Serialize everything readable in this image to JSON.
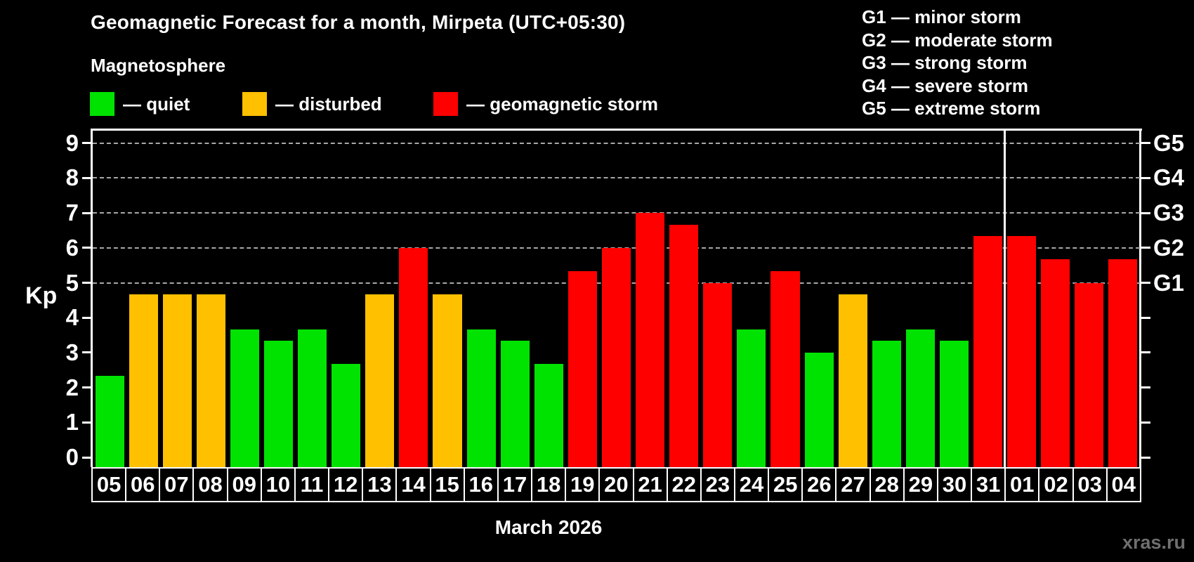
{
  "header": {
    "title": "Geomagnetic Forecast for a month, Mirpeta (UTC+05:30)",
    "subtitle": "Magnetosphere"
  },
  "legend": {
    "items": [
      {
        "status": "quiet",
        "label": "— quiet"
      },
      {
        "status": "disturbed",
        "label": "— disturbed"
      },
      {
        "status": "storm",
        "label": "— geomagnetic storm"
      }
    ]
  },
  "g_legend": {
    "items": [
      "G1 — minor storm",
      "G2 — moderate storm",
      "G3 — strong storm",
      "G4 — severe storm",
      "G5 — extreme storm"
    ]
  },
  "footer": {
    "month_label": "March 2026",
    "watermark": "xras.ru"
  },
  "chart_data": {
    "type": "bar",
    "title": "Geomagnetic Forecast for a month, Mirpeta (UTC+05:30)",
    "ylabel": "Kp",
    "xlabel": "March 2026",
    "ylim": [
      0,
      9.4
    ],
    "y_ticks": [
      0,
      1,
      2,
      3,
      4,
      5,
      6,
      7,
      8,
      9
    ],
    "gridlines_at": [
      5,
      6,
      7,
      8,
      9
    ],
    "grid": "dashed, horizontal only, Kp 5-9",
    "legend_position": "top-left",
    "right_axis_labels": [
      {
        "text": "G1",
        "kp": 5
      },
      {
        "text": "G2",
        "kp": 6
      },
      {
        "text": "G3",
        "kp": 7
      },
      {
        "text": "G4",
        "kp": 8
      },
      {
        "text": "G5",
        "kp": 9
      }
    ],
    "month_separator_after_index": 26,
    "categories": [
      "05",
      "06",
      "07",
      "08",
      "09",
      "10",
      "11",
      "12",
      "13",
      "14",
      "15",
      "16",
      "17",
      "18",
      "19",
      "20",
      "21",
      "22",
      "23",
      "24",
      "25",
      "26",
      "27",
      "28",
      "29",
      "30",
      "31",
      "01",
      "02",
      "03",
      "04"
    ],
    "values": [
      2.33,
      4.67,
      4.67,
      4.67,
      3.67,
      3.33,
      3.67,
      2.67,
      4.67,
      6,
      4.67,
      3.67,
      3.33,
      2.67,
      5.33,
      6,
      7,
      6.67,
      5,
      3.67,
      5.33,
      3,
      4.67,
      3.33,
      3.67,
      3.33,
      6.33,
      6.33,
      5.67,
      5,
      5.67
    ],
    "statuses": [
      "quiet",
      "disturbed",
      "disturbed",
      "disturbed",
      "quiet",
      "quiet",
      "quiet",
      "quiet",
      "disturbed",
      "storm",
      "disturbed",
      "quiet",
      "quiet",
      "quiet",
      "storm",
      "storm",
      "storm",
      "storm",
      "storm",
      "quiet",
      "storm",
      "quiet",
      "disturbed",
      "quiet",
      "quiet",
      "quiet",
      "storm",
      "storm",
      "storm",
      "storm",
      "storm"
    ],
    "status_colors": {
      "quiet": "#00E300",
      "disturbed": "#FFC000",
      "storm": "#FF0000"
    },
    "axis_color": "#FFFFFF",
    "gridline_color": "#A8A8A8",
    "background_color": "#000000"
  }
}
